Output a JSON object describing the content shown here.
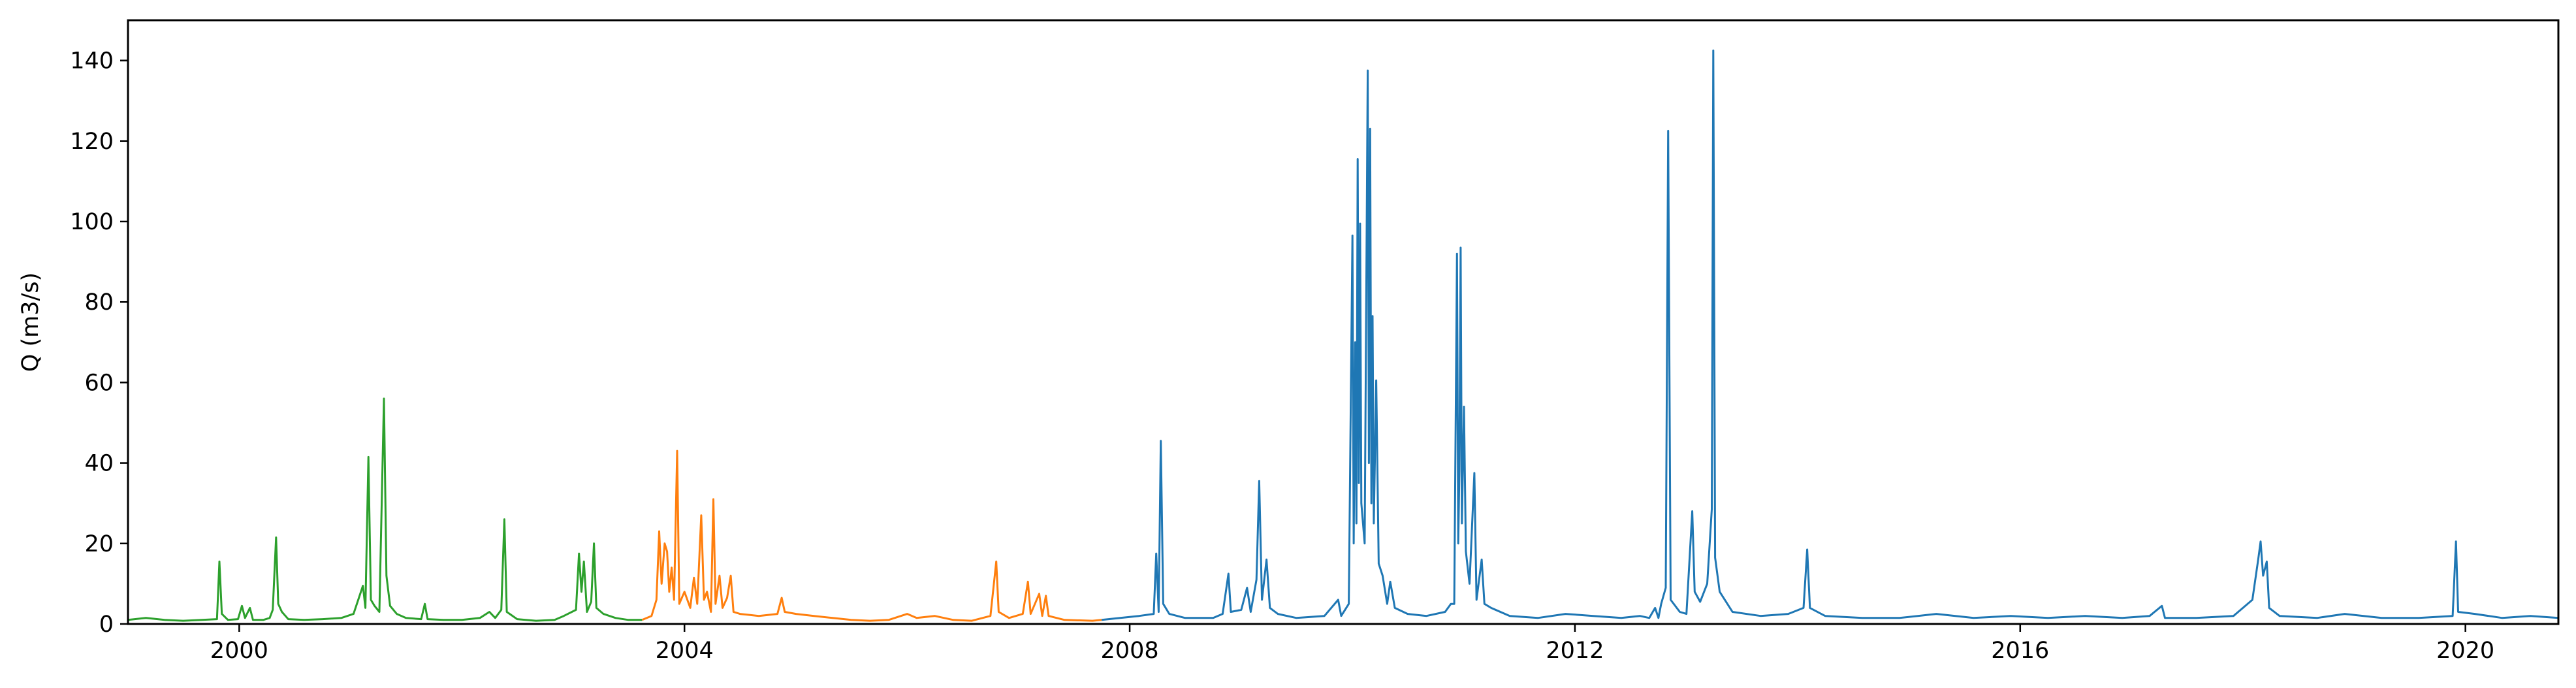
{
  "chart_data": {
    "type": "line",
    "title": "",
    "xlabel": "",
    "ylabel": "Q (m3/s)",
    "xlim": [
      "1999-01-01",
      "2020-11-01"
    ],
    "ylim": [
      0,
      150
    ],
    "grid": false,
    "x_ticks": [
      "2000",
      "2004",
      "2008",
      "2012",
      "2016",
      "2020"
    ],
    "y_ticks": [
      "0",
      "20",
      "40",
      "60",
      "80",
      "100",
      "120",
      "140"
    ],
    "series": [
      {
        "color": "#2ca02c",
        "points": [
          [
            "1999-01-01",
            1.0
          ],
          [
            "1999-03-01",
            1.5
          ],
          [
            "1999-05-01",
            1.0
          ],
          [
            "1999-07-01",
            0.8
          ],
          [
            "1999-09-01",
            1.0
          ],
          [
            "1999-10-20",
            1.2
          ],
          [
            "1999-10-28",
            15.5
          ],
          [
            "1999-11-05",
            2.5
          ],
          [
            "1999-11-25",
            1.0
          ],
          [
            "1999-12-28",
            1.2
          ],
          [
            "2000-01-10",
            4.5
          ],
          [
            "2000-01-20",
            1.5
          ],
          [
            "2000-02-05",
            4.0
          ],
          [
            "2000-02-15",
            1.0
          ],
          [
            "2000-03-20",
            1.0
          ],
          [
            "2000-04-10",
            1.5
          ],
          [
            "2000-04-20",
            3.5
          ],
          [
            "2000-05-01",
            21.5
          ],
          [
            "2000-05-08",
            5.0
          ],
          [
            "2000-05-20",
            3.0
          ],
          [
            "2000-06-10",
            1.2
          ],
          [
            "2000-08-01",
            1.0
          ],
          [
            "2000-10-01",
            1.2
          ],
          [
            "2000-12-01",
            1.5
          ],
          [
            "2001-01-10",
            2.5
          ],
          [
            "2001-02-10",
            9.5
          ],
          [
            "2001-02-18",
            4.0
          ],
          [
            "2001-02-28",
            41.5
          ],
          [
            "2001-03-08",
            6.0
          ],
          [
            "2001-03-20",
            4.5
          ],
          [
            "2001-04-05",
            3.0
          ],
          [
            "2001-04-20",
            56.0
          ],
          [
            "2001-04-28",
            12.0
          ],
          [
            "2001-05-10",
            4.5
          ],
          [
            "2001-06-01",
            2.5
          ],
          [
            "2001-07-01",
            1.5
          ],
          [
            "2001-08-20",
            1.2
          ],
          [
            "2001-09-01",
            5.0
          ],
          [
            "2001-09-10",
            1.2
          ],
          [
            "2001-11-01",
            1.0
          ],
          [
            "2002-01-01",
            1.0
          ],
          [
            "2002-03-01",
            1.5
          ],
          [
            "2002-04-01",
            3.0
          ],
          [
            "2002-04-20",
            1.5
          ],
          [
            "2002-05-10",
            3.5
          ],
          [
            "2002-05-20",
            26.0
          ],
          [
            "2002-05-28",
            3.0
          ],
          [
            "2002-07-01",
            1.2
          ],
          [
            "2002-09-01",
            0.8
          ],
          [
            "2002-11-01",
            1.0
          ],
          [
            "2002-12-01",
            2.0
          ],
          [
            "2003-01-10",
            3.5
          ],
          [
            "2003-01-20",
            17.5
          ],
          [
            "2003-01-28",
            8.0
          ],
          [
            "2003-02-05",
            15.5
          ],
          [
            "2003-02-15",
            3.0
          ],
          [
            "2003-03-01",
            5.5
          ],
          [
            "2003-03-10",
            20.0
          ],
          [
            "2003-03-18",
            4.0
          ],
          [
            "2003-04-10",
            2.5
          ],
          [
            "2003-05-20",
            1.5
          ],
          [
            "2003-07-01",
            1.0
          ],
          [
            "2003-08-15",
            1.0
          ]
        ]
      },
      {
        "color": "#ff7f0e",
        "points": [
          [
            "2003-08-15",
            1.0
          ],
          [
            "2003-09-15",
            2.0
          ],
          [
            "2003-10-01",
            6.0
          ],
          [
            "2003-10-10",
            23.0
          ],
          [
            "2003-10-18",
            10.0
          ],
          [
            "2003-10-28",
            20.0
          ],
          [
            "2003-11-05",
            18.0
          ],
          [
            "2003-11-12",
            8.0
          ],
          [
            "2003-11-20",
            14.0
          ],
          [
            "2003-11-28",
            6.0
          ],
          [
            "2003-12-08",
            43.0
          ],
          [
            "2003-12-15",
            5.0
          ],
          [
            "2004-01-01",
            8.0
          ],
          [
            "2004-01-20",
            4.0
          ],
          [
            "2004-02-01",
            11.5
          ],
          [
            "2004-02-12",
            5.0
          ],
          [
            "2004-02-25",
            27.0
          ],
          [
            "2004-03-05",
            6.0
          ],
          [
            "2004-03-15",
            8.0
          ],
          [
            "2004-03-28",
            3.0
          ],
          [
            "2004-04-05",
            31.0
          ],
          [
            "2004-04-12",
            5.0
          ],
          [
            "2004-04-25",
            12.0
          ],
          [
            "2004-05-05",
            4.0
          ],
          [
            "2004-05-20",
            6.5
          ],
          [
            "2004-06-01",
            12.0
          ],
          [
            "2004-06-10",
            3.0
          ],
          [
            "2004-07-01",
            2.5
          ],
          [
            "2004-09-01",
            2.0
          ],
          [
            "2004-11-01",
            2.5
          ],
          [
            "2004-11-15",
            6.5
          ],
          [
            "2004-11-25",
            3.0
          ],
          [
            "2005-01-01",
            2.5
          ],
          [
            "2005-03-01",
            2.0
          ],
          [
            "2005-05-01",
            1.5
          ],
          [
            "2005-07-01",
            1.0
          ],
          [
            "2005-09-01",
            0.8
          ],
          [
            "2005-11-01",
            1.0
          ],
          [
            "2006-01-01",
            2.5
          ],
          [
            "2006-02-01",
            1.5
          ],
          [
            "2006-04-01",
            2.0
          ],
          [
            "2006-06-01",
            1.0
          ],
          [
            "2006-08-01",
            0.8
          ],
          [
            "2006-10-01",
            2.0
          ],
          [
            "2006-10-20",
            15.5
          ],
          [
            "2006-10-28",
            3.0
          ],
          [
            "2006-12-01",
            1.5
          ],
          [
            "2007-01-15",
            2.5
          ],
          [
            "2007-02-01",
            10.5
          ],
          [
            "2007-02-10",
            2.5
          ],
          [
            "2007-03-10",
            7.5
          ],
          [
            "2007-03-20",
            2.0
          ],
          [
            "2007-04-01",
            7.0
          ],
          [
            "2007-04-10",
            2.0
          ],
          [
            "2007-06-01",
            1.0
          ],
          [
            "2007-09-01",
            0.8
          ],
          [
            "2007-10-01",
            1.0
          ]
        ]
      },
      {
        "color": "#1f77b4",
        "points": [
          [
            "2007-10-01",
            1.0
          ],
          [
            "2007-12-01",
            1.5
          ],
          [
            "2008-02-01",
            2.0
          ],
          [
            "2008-03-20",
            2.5
          ],
          [
            "2008-03-28",
            17.5
          ],
          [
            "2008-04-05",
            3.0
          ],
          [
            "2008-04-12",
            45.5
          ],
          [
            "2008-04-20",
            5.0
          ],
          [
            "2008-05-10",
            2.5
          ],
          [
            "2008-07-01",
            1.5
          ],
          [
            "2008-10-01",
            1.5
          ],
          [
            "2008-11-01",
            2.5
          ],
          [
            "2008-11-20",
            12.5
          ],
          [
            "2008-11-28",
            3.0
          ],
          [
            "2009-01-01",
            3.5
          ],
          [
            "2009-01-20",
            9.0
          ],
          [
            "2009-02-01",
            3.0
          ],
          [
            "2009-02-20",
            11.0
          ],
          [
            "2009-03-01",
            35.5
          ],
          [
            "2009-03-10",
            6.0
          ],
          [
            "2009-03-25",
            16.0
          ],
          [
            "2009-04-05",
            4.0
          ],
          [
            "2009-05-01",
            2.5
          ],
          [
            "2009-07-01",
            1.5
          ],
          [
            "2009-10-01",
            2.0
          ],
          [
            "2009-11-15",
            6.0
          ],
          [
            "2009-11-25",
            2.0
          ],
          [
            "2009-12-20",
            5.0
          ],
          [
            "2010-01-01",
            96.5
          ],
          [
            "2010-01-05",
            20.0
          ],
          [
            "2010-01-10",
            70.0
          ],
          [
            "2010-01-14",
            25.0
          ],
          [
            "2010-01-18",
            115.5
          ],
          [
            "2010-01-22",
            35.0
          ],
          [
            "2010-01-26",
            99.5
          ],
          [
            "2010-01-30",
            30.0
          ],
          [
            "2010-02-10",
            20.0
          ],
          [
            "2010-02-20",
            137.5
          ],
          [
            "2010-02-24",
            40.0
          ],
          [
            "2010-02-28",
            123.0
          ],
          [
            "2010-03-04",
            30.0
          ],
          [
            "2010-03-08",
            76.5
          ],
          [
            "2010-03-12",
            25.0
          ],
          [
            "2010-03-20",
            60.5
          ],
          [
            "2010-03-28",
            15.0
          ],
          [
            "2010-04-10",
            12.0
          ],
          [
            "2010-04-25",
            5.0
          ],
          [
            "2010-05-05",
            10.5
          ],
          [
            "2010-05-20",
            4.0
          ],
          [
            "2010-07-01",
            2.5
          ],
          [
            "2010-09-01",
            2.0
          ],
          [
            "2010-11-01",
            3.0
          ],
          [
            "2010-11-20",
            5.0
          ],
          [
            "2010-12-01",
            5.0
          ],
          [
            "2010-12-10",
            92.0
          ],
          [
            "2010-12-14",
            20.0
          ],
          [
            "2010-12-18",
            38.0
          ],
          [
            "2010-12-22",
            93.5
          ],
          [
            "2010-12-26",
            25.0
          ],
          [
            "2011-01-02",
            54.0
          ],
          [
            "2011-01-08",
            18.0
          ],
          [
            "2011-01-20",
            10.0
          ],
          [
            "2011-02-05",
            37.5
          ],
          [
            "2011-02-12",
            6.0
          ],
          [
            "2011-03-01",
            16.0
          ],
          [
            "2011-03-10",
            5.0
          ],
          [
            "2011-04-01",
            4.0
          ],
          [
            "2011-06-01",
            2.0
          ],
          [
            "2011-09-01",
            1.5
          ],
          [
            "2011-12-01",
            2.5
          ],
          [
            "2012-03-01",
            2.0
          ],
          [
            "2012-06-01",
            1.5
          ],
          [
            "2012-08-01",
            2.0
          ],
          [
            "2012-09-01",
            1.5
          ],
          [
            "2012-09-20",
            4.0
          ],
          [
            "2012-10-01",
            1.5
          ],
          [
            "2012-10-10",
            5.0
          ],
          [
            "2012-10-25",
            9.0
          ],
          [
            "2012-11-02",
            122.5
          ],
          [
            "2012-11-10",
            6.0
          ],
          [
            "2012-12-10",
            3.0
          ],
          [
            "2013-01-01",
            2.5
          ],
          [
            "2013-01-20",
            28.0
          ],
          [
            "2013-01-28",
            8.0
          ],
          [
            "2013-02-15",
            5.5
          ],
          [
            "2013-03-10",
            10.0
          ],
          [
            "2013-03-25",
            28.5
          ],
          [
            "2013-03-30",
            142.5
          ],
          [
            "2013-04-05",
            16.5
          ],
          [
            "2013-04-20",
            8.0
          ],
          [
            "2013-06-01",
            3.0
          ],
          [
            "2013-09-01",
            2.0
          ],
          [
            "2013-12-01",
            2.5
          ],
          [
            "2014-01-20",
            4.0
          ],
          [
            "2014-02-01",
            18.5
          ],
          [
            "2014-02-10",
            4.0
          ],
          [
            "2014-04-01",
            2.0
          ],
          [
            "2014-08-01",
            1.5
          ],
          [
            "2014-12-01",
            1.5
          ],
          [
            "2015-04-01",
            2.5
          ],
          [
            "2015-08-01",
            1.5
          ],
          [
            "2015-12-01",
            2.0
          ],
          [
            "2016-04-01",
            1.5
          ],
          [
            "2016-08-01",
            2.0
          ],
          [
            "2016-12-01",
            1.5
          ],
          [
            "2017-03-01",
            2.0
          ],
          [
            "2017-04-10",
            4.5
          ],
          [
            "2017-04-20",
            1.5
          ],
          [
            "2017-08-01",
            1.5
          ],
          [
            "2017-12-01",
            2.0
          ],
          [
            "2018-02-01",
            6.0
          ],
          [
            "2018-02-20",
            16.0
          ],
          [
            "2018-02-28",
            20.5
          ],
          [
            "2018-03-08",
            12.0
          ],
          [
            "2018-03-20",
            15.5
          ],
          [
            "2018-03-28",
            4.0
          ],
          [
            "2018-05-01",
            2.0
          ],
          [
            "2018-09-01",
            1.5
          ],
          [
            "2018-12-01",
            2.5
          ],
          [
            "2019-04-01",
            1.5
          ],
          [
            "2019-08-01",
            1.5
          ],
          [
            "2019-11-20",
            2.0
          ],
          [
            "2019-12-01",
            20.5
          ],
          [
            "2019-12-08",
            3.0
          ],
          [
            "2020-02-01",
            2.5
          ],
          [
            "2020-05-01",
            1.5
          ],
          [
            "2020-08-01",
            2.0
          ],
          [
            "2020-11-01",
            1.5
          ]
        ]
      }
    ]
  }
}
